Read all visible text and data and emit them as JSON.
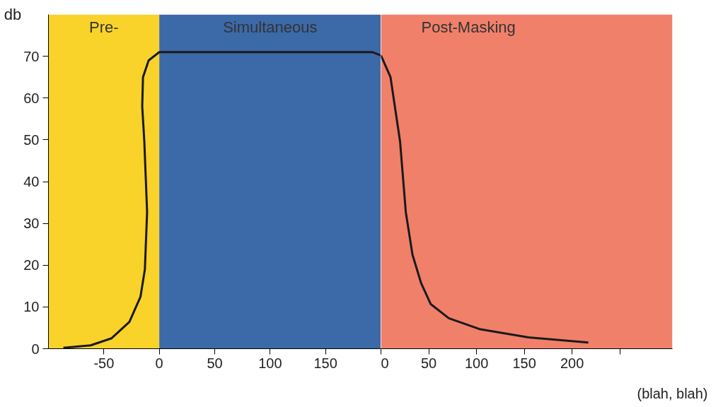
{
  "chart_data": [
    {
      "type": "line",
      "ylabel": "db",
      "xlim": [
        -100,
        200
      ],
      "ylim": [
        0,
        80
      ],
      "xticks": [
        -50,
        0,
        50,
        100,
        150
      ],
      "yticks": [
        0,
        10,
        20,
        30,
        40,
        50,
        60,
        70
      ],
      "bands": [
        {
          "axis": "x",
          "from": -100,
          "to": 0,
          "label": "Pre-",
          "color": "#f9d22a"
        },
        {
          "axis": "x",
          "from": 0,
          "to": 200,
          "label": "Simultaneous",
          "color": "#3c69a8"
        }
      ],
      "series": [
        {
          "color": "#1a1a1a",
          "x": [
            -86.5,
            -62,
            -43,
            -27,
            -17,
            -13,
            -11,
            -13.5,
            -15.4,
            -14.7,
            -9.6,
            0,
            192,
            200
          ],
          "values": [
            0.2,
            0.8,
            2.5,
            6.4,
            12.4,
            19,
            32.7,
            49.6,
            58,
            65,
            69,
            71,
            71,
            70.2
          ]
        }
      ],
      "marker": "none",
      "line_style": "solid"
    },
    {
      "type": "line",
      "xlabel": "(blah, blah)",
      "xlim": [
        0,
        305
      ],
      "ylim": [
        0,
        80
      ],
      "tick_labels": "x",
      "xticks": [
        0,
        50,
        100,
        150,
        200,
        {
          "value": 250,
          "label": null
        }
      ],
      "bands": [
        {
          "axis": "x",
          "from": 0,
          "to": 305,
          "label": "Post-Masking",
          "color": "#f0806a"
        }
      ],
      "series": [
        {
          "color": "#1a1a1a",
          "x": [
            0,
            10,
            20,
            26,
            33,
            42,
            52,
            71,
            103,
            154.5,
            217
          ],
          "values": [
            70.2,
            65,
            49.6,
            32.7,
            22.5,
            15.7,
            10.7,
            7.3,
            4.7,
            2.7,
            1.5
          ]
        }
      ],
      "marker": "none",
      "line_style": "solid"
    }
  ]
}
